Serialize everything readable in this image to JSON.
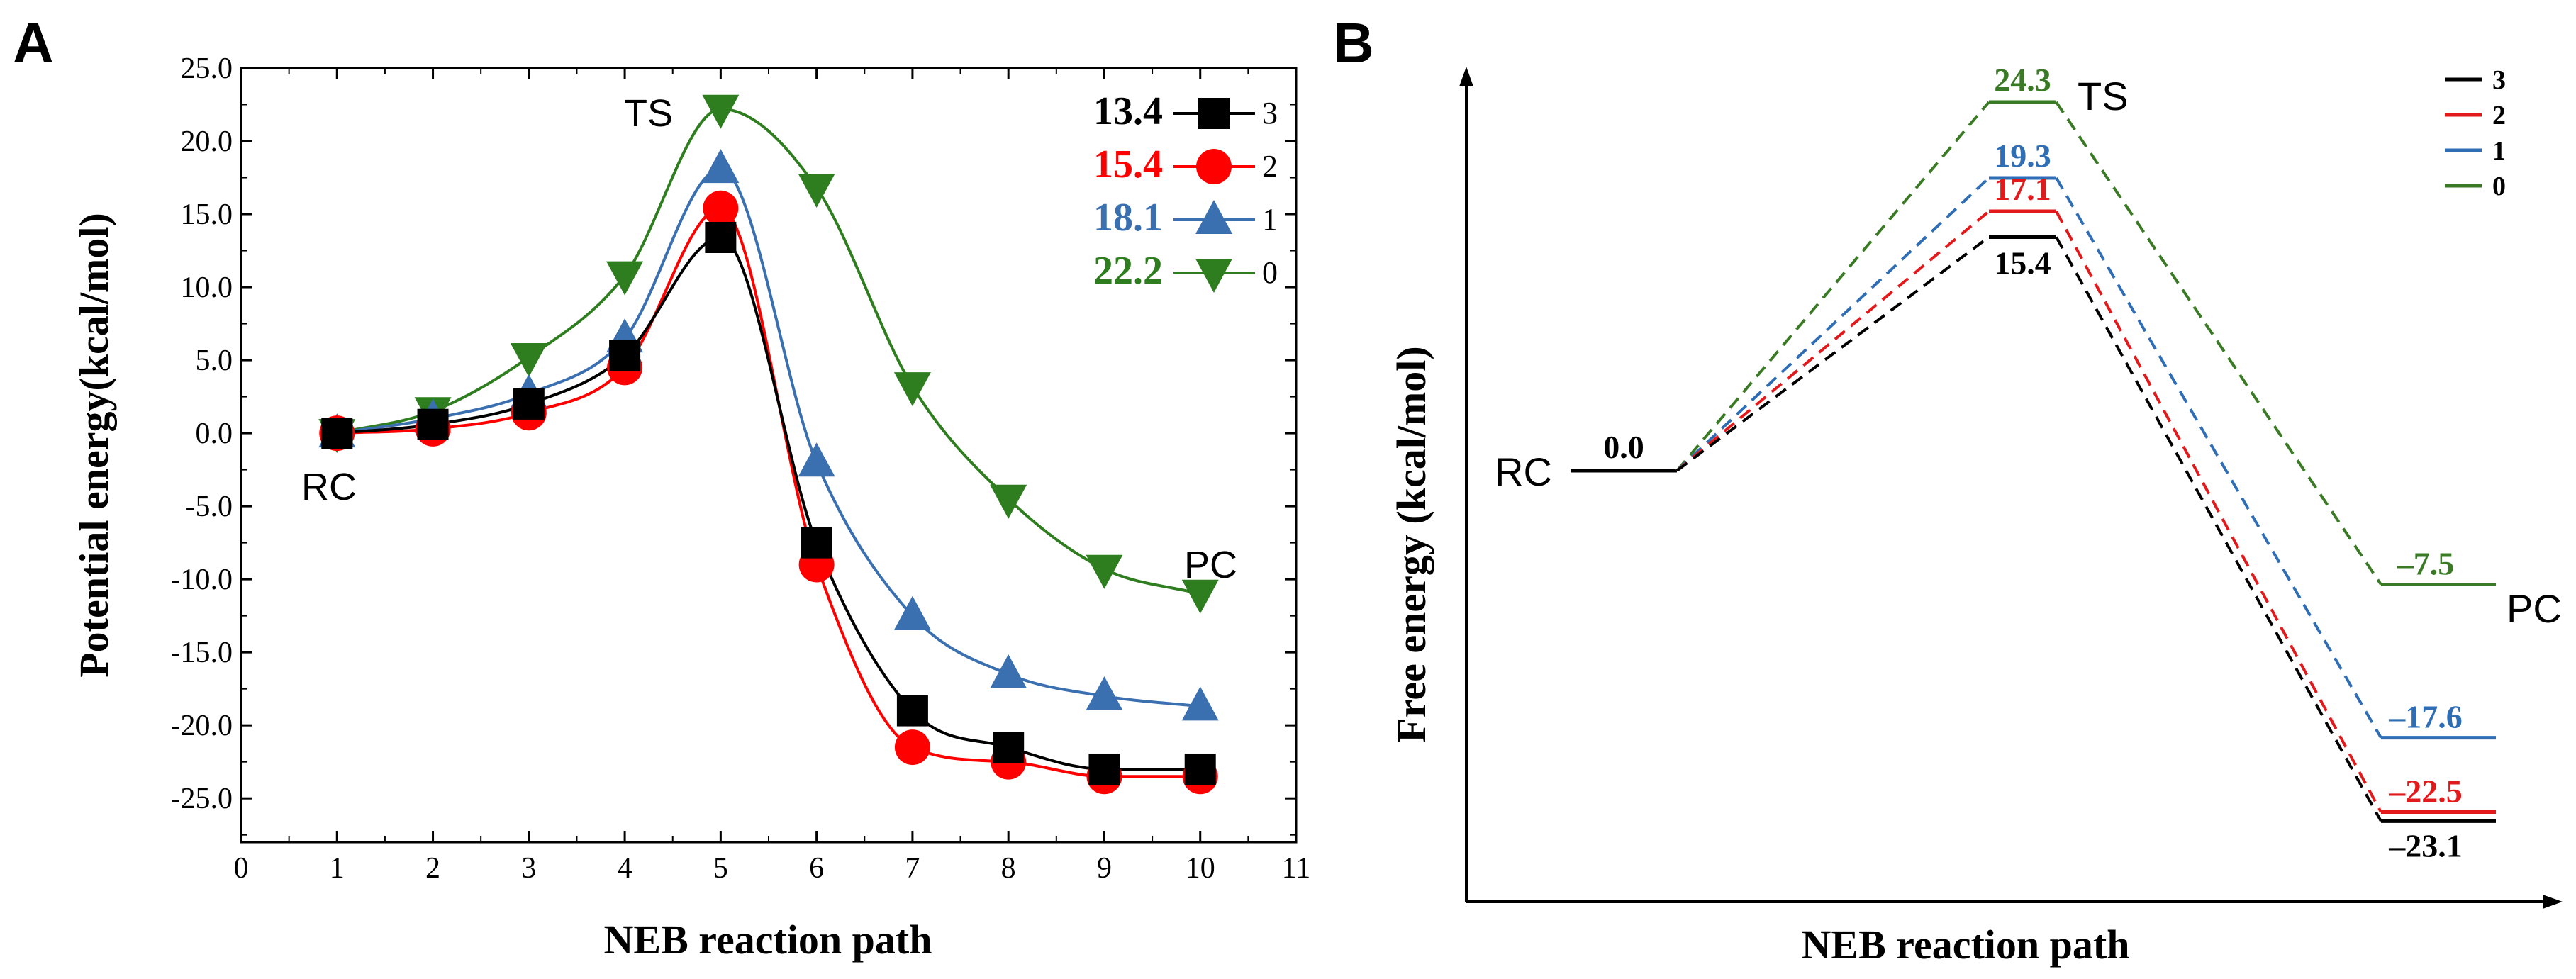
{
  "chart_data": [
    {
      "panel": "A",
      "type": "line",
      "xlabel": "NEB reaction path",
      "ylabel": "Potential energy(kcal/mol)",
      "xlim": [
        0,
        11
      ],
      "ylim": [
        -28,
        25
      ],
      "xticks": [
        0,
        1,
        2,
        3,
        4,
        5,
        6,
        7,
        8,
        9,
        10,
        11
      ],
      "yticks": [
        25.0,
        20.0,
        15.0,
        10.0,
        5.0,
        0.0,
        -5.0,
        -10.0,
        -15.0,
        -20.0,
        -25.0
      ],
      "ytick_labels": [
        "25.0",
        "20.0",
        "15.0",
        "10.0",
        "5.0",
        "0.0",
        "-5.0",
        "-10.0",
        "-15.0",
        "-20.0",
        "-25.0"
      ],
      "x": [
        1,
        2,
        3,
        4,
        5,
        6,
        7,
        8,
        9,
        10
      ],
      "series": [
        {
          "name": "3",
          "barrier": "13.4",
          "color": "#000000",
          "marker": "square",
          "values": [
            0.0,
            0.6,
            2.0,
            5.3,
            13.4,
            -7.5,
            -19.0,
            -21.5,
            -23.0,
            -23.0
          ]
        },
        {
          "name": "2",
          "barrier": "15.4",
          "color": "#ff0000",
          "marker": "circle",
          "values": [
            0.0,
            0.3,
            1.4,
            4.5,
            15.4,
            -9.0,
            -21.5,
            -22.5,
            -23.5,
            -23.5
          ]
        },
        {
          "name": "1",
          "barrier": "18.1",
          "color": "#3a6fb0",
          "marker": "triangle-up",
          "values": [
            0.0,
            1.0,
            2.7,
            6.5,
            18.1,
            -2.0,
            -12.5,
            -16.5,
            -18.0,
            -18.7
          ]
        },
        {
          "name": "0",
          "barrier": "22.2",
          "color": "#2e7d1e",
          "marker": "triangle-down",
          "values": [
            0.0,
            1.5,
            5.2,
            10.8,
            22.2,
            16.8,
            3.2,
            -4.5,
            -9.3,
            -11.0
          ]
        }
      ],
      "annotations": [
        "TS",
        "RC",
        "PC"
      ],
      "legend_position": "top-right"
    },
    {
      "panel": "B",
      "type": "energy-diagram",
      "xlabel": "NEB reaction path",
      "ylabel": "Free energy (kcal/mol)",
      "states": [
        "RC",
        "TS",
        "PC"
      ],
      "rc_label": "0.0",
      "series": [
        {
          "name": "3",
          "color": "#000000",
          "RC": 0.0,
          "TS": 15.4,
          "PC": -23.1,
          "ts_label": "15.4",
          "pc_label": "–23.1"
        },
        {
          "name": "2",
          "color": "#e31a1c",
          "RC": 0.0,
          "TS": 17.1,
          "PC": -22.5,
          "ts_label": "17.1",
          "pc_label": "–22.5"
        },
        {
          "name": "1",
          "color": "#2f6db5",
          "RC": 0.0,
          "TS": 19.3,
          "PC": -17.6,
          "ts_label": "19.3",
          "pc_label": "–17.6"
        },
        {
          "name": "0",
          "color": "#3a7a25",
          "RC": 0.0,
          "TS": 24.3,
          "PC": -7.5,
          "ts_label": "24.3",
          "pc_label": "–7.5"
        }
      ],
      "legend_position": "top-right"
    }
  ],
  "panel_labels": {
    "a": "A",
    "b": "B"
  }
}
